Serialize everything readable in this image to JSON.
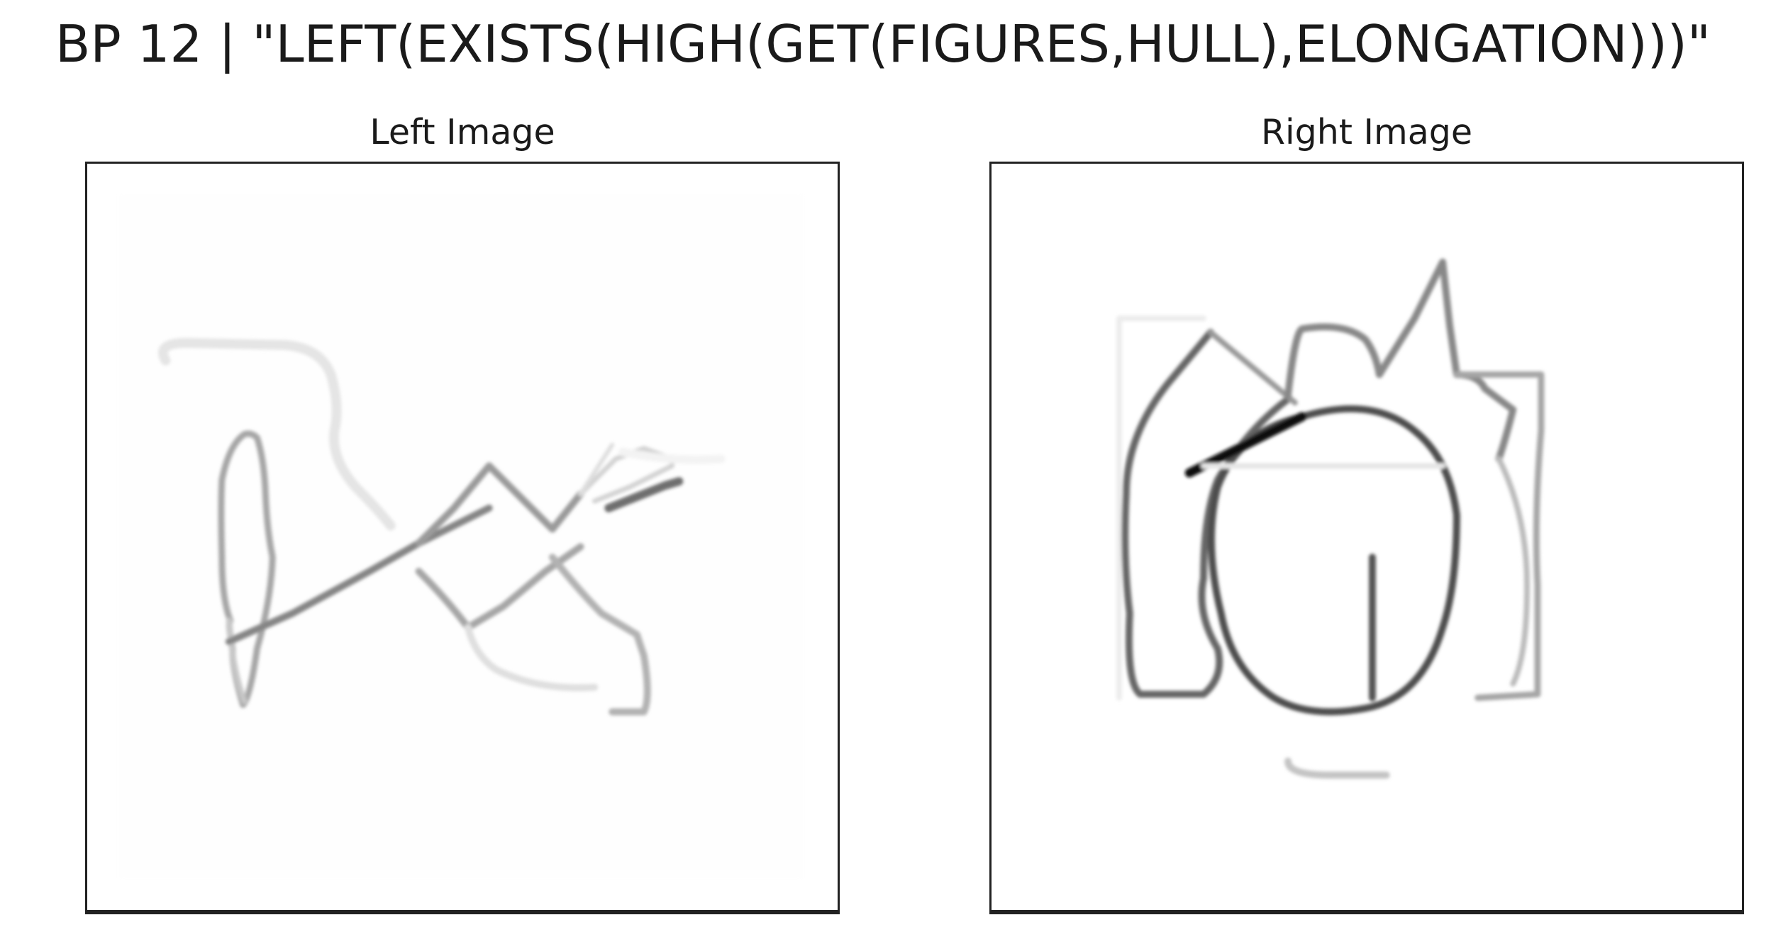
{
  "figure": {
    "title": "BP 12 | \"LEFT(EXISTS(HIGH(GET(FIGURES,HULL),ELONGATION)))\""
  },
  "panels": [
    {
      "title": "Left Image"
    },
    {
      "title": "Right Image"
    }
  ],
  "colors": {
    "background": "#ffffff",
    "frame": "#222222",
    "ink": "#1a1a1a"
  }
}
